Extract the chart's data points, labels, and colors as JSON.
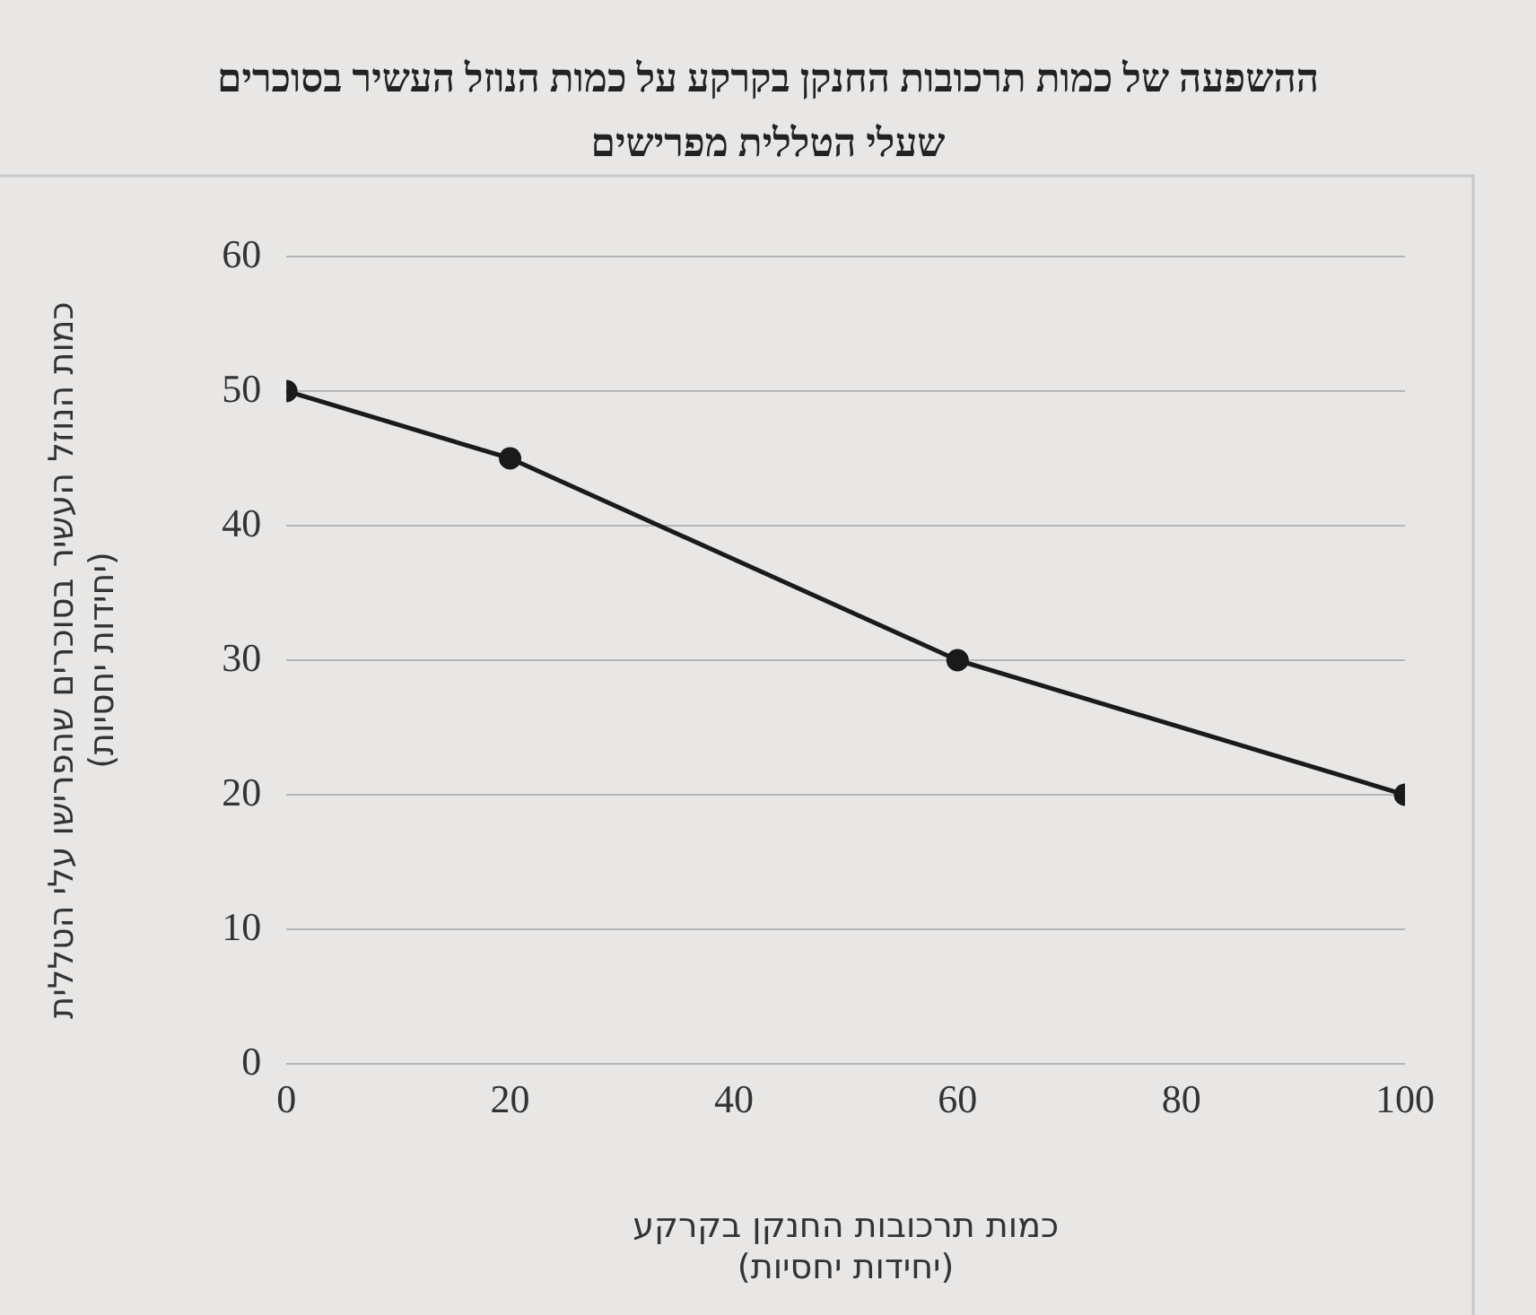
{
  "chart_data": {
    "type": "line",
    "title": "ההשפעה של כמות תרכובות החנקן בקרקע על כמות הנוזל העשיר בסוכרים שעלי הטללית מפרישים",
    "xlabel": "כמות תרכובות החנקן בקרקע (יחידות יחסיות)",
    "ylabel": "כמות הנוזל העשיר בסוכרים שהפרישו עלי הטללית (יחידות יחסיות)",
    "x": [
      0,
      20,
      60,
      100
    ],
    "series": [
      {
        "color": "#1a1a1a",
        "values": [
          50,
          45,
          30,
          20
        ]
      }
    ],
    "xlim": [
      0,
      100
    ],
    "xticks": [
      0,
      20,
      40,
      60,
      80,
      100
    ],
    "ylim": [
      0,
      60
    ],
    "yticks": [
      0,
      10,
      20,
      30,
      40,
      50,
      60
    ],
    "grid": "y",
    "marker": "circle",
    "line_style": "solid",
    "legend": false
  }
}
